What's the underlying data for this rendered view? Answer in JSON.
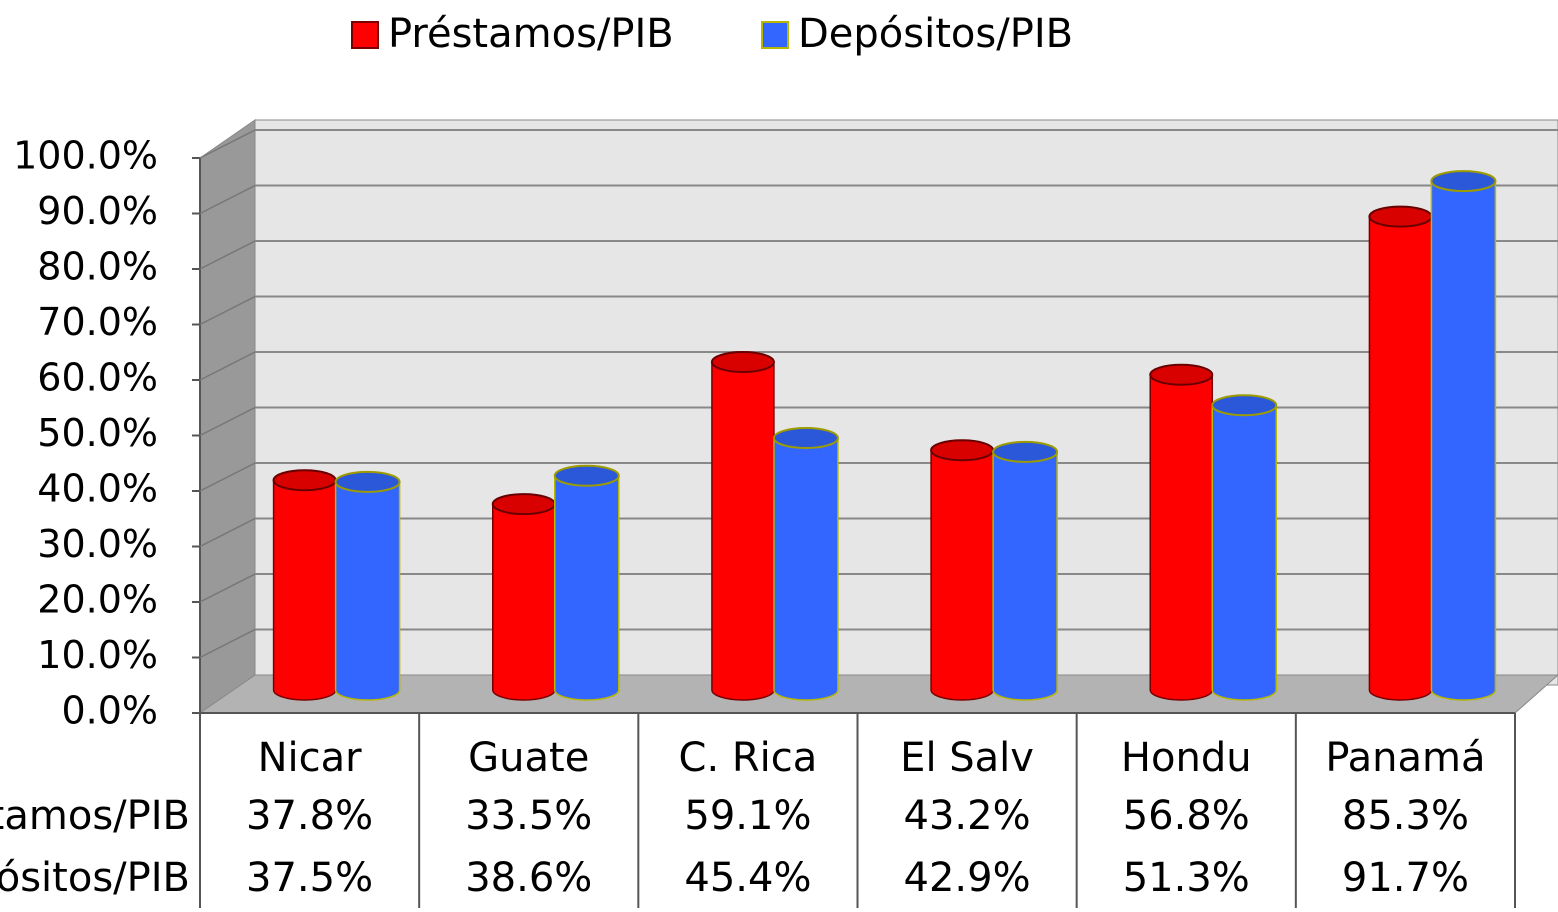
{
  "chart_data": {
    "type": "bar3d",
    "categories": [
      "Nicar",
      "Guate",
      "C. Rica",
      "El Salv",
      "Hondu",
      "Panamá"
    ],
    "series": [
      {
        "name": "Préstamos/PIB",
        "color": "#ff0000",
        "values": [
          37.8,
          33.5,
          59.1,
          43.2,
          56.8,
          85.3
        ],
        "value_labels": [
          "37.8%",
          "33.5%",
          "59.1%",
          "43.2%",
          "56.8%",
          "85.3%"
        ]
      },
      {
        "name": "Depósitos/PIB",
        "color": "#3366ff",
        "values": [
          37.5,
          38.6,
          45.4,
          42.9,
          51.3,
          91.7
        ],
        "value_labels": [
          "37.5%",
          "38.6%",
          "45.4%",
          "42.9%",
          "51.3%",
          "91.7%"
        ]
      }
    ],
    "ylim": [
      0,
      100
    ],
    "yticks": [
      {
        "value": 0,
        "label": "0.0%"
      },
      {
        "value": 10,
        "label": "10.0%"
      },
      {
        "value": 20,
        "label": "20.0%"
      },
      {
        "value": 30,
        "label": "30.0%"
      },
      {
        "value": 40,
        "label": "40.0%"
      },
      {
        "value": 50,
        "label": "50.0%"
      },
      {
        "value": 60,
        "label": "60.0%"
      },
      {
        "value": 70,
        "label": "70.0%"
      },
      {
        "value": 80,
        "label": "80.0%"
      },
      {
        "value": 90,
        "label": "90.0%"
      },
      {
        "value": 100,
        "label": "100.0%"
      }
    ],
    "grid": true,
    "legend": "top",
    "data_table": true
  }
}
